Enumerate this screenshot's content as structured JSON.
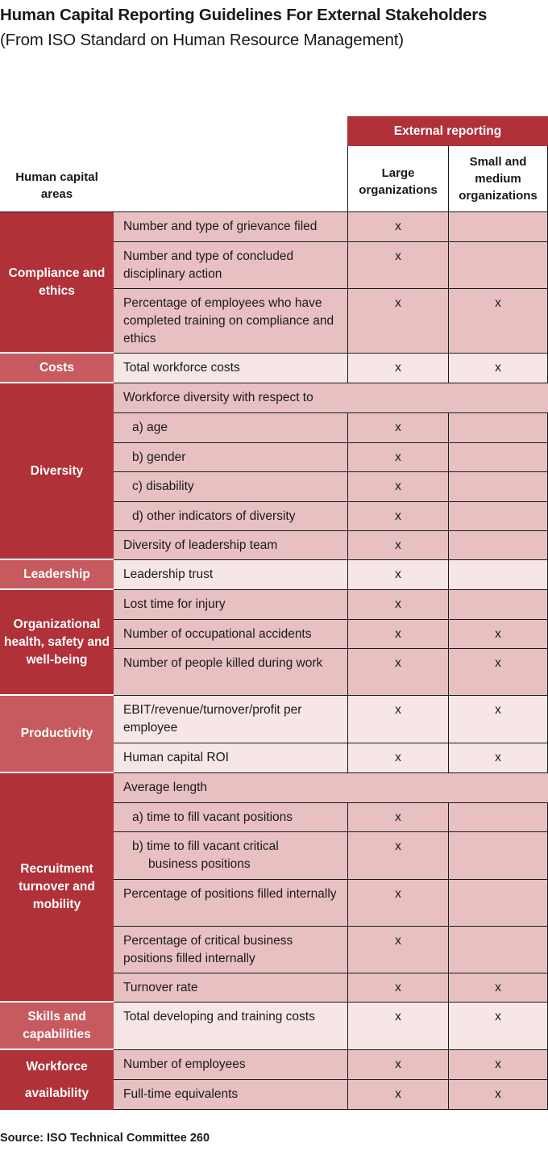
{
  "title": "Human Capital Reporting Guidelines For External Stakeholders",
  "subtitle": "(From ISO Standard on Human Resource Management)",
  "header": {
    "areas": "Human capital areas",
    "external": "External reporting",
    "large": "Large organizations",
    "small": "Small and medium organizations"
  },
  "areas": {
    "compliance": "Compliance and ethics",
    "costs": "Costs",
    "diversity": "Diversity",
    "leadership": "Leadership",
    "health": "Organizational health, safety and well-being",
    "productivity": "Productivity",
    "recruitment": "Recruitment turnover and mobility",
    "skills": "Skills and capabilities",
    "workforce_1": "Workforce",
    "workforce_2": "availability"
  },
  "rows": [
    {
      "item": "Number and type of grievance filed",
      "large": "x",
      "small": ""
    },
    {
      "item": "Number and type of concluded disciplinary action",
      "large": "x",
      "small": ""
    },
    {
      "item": "Percentage of employees who have completed training on compliance and ethics",
      "large": "x",
      "small": "x"
    },
    {
      "item": "Total workforce costs",
      "large": "x",
      "small": "x"
    },
    {
      "item": "Workforce diversity with respect to",
      "large": "",
      "small": ""
    },
    {
      "item": "a) age",
      "large": "x",
      "small": ""
    },
    {
      "item": "b) gender",
      "large": "x",
      "small": ""
    },
    {
      "item": "c) disability",
      "large": "x",
      "small": ""
    },
    {
      "item": "d) other indicators of diversity",
      "large": "x",
      "small": ""
    },
    {
      "item": "Diversity of leadership team",
      "large": "x",
      "small": ""
    },
    {
      "item": "Leadership trust",
      "large": "x",
      "small": ""
    },
    {
      "item": "Lost time for injury",
      "large": "x",
      "small": ""
    },
    {
      "item": "Number of occupational accidents",
      "large": "x",
      "small": "x"
    },
    {
      "item": "Number of people killed during work",
      "large": "x",
      "small": "x"
    },
    {
      "item": "EBIT/revenue/turnover/profit per employee",
      "large": "x",
      "small": "x"
    },
    {
      "item": "Human capital ROI",
      "large": "x",
      "small": "x"
    },
    {
      "item": "Average length",
      "large": "",
      "small": ""
    },
    {
      "item": "a) time to fill vacant positions",
      "large": "x",
      "small": ""
    },
    {
      "item": "b) time to fill vacant critical",
      "item_cont": "business positions",
      "large": "x",
      "small": ""
    },
    {
      "item": "Percentage of positions filled internally",
      "large": "x",
      "small": ""
    },
    {
      "item": "Percentage of critical business positions filled internally",
      "large": "x",
      "small": ""
    },
    {
      "item": "Turnover rate",
      "large": "x",
      "small": "x"
    },
    {
      "item": "Total developing and training costs",
      "large": "x",
      "small": "x"
    },
    {
      "item": "Number of employees",
      "large": "x",
      "small": "x"
    },
    {
      "item": "Full-time equivalents",
      "large": "x",
      "small": "x"
    }
  ],
  "source": "Source: ISO Technical Committee 260",
  "colors": {
    "area_dark": "#b03138",
    "area_light": "#c75a5e",
    "row_dark": "#e8c0c2",
    "row_light": "#f6e6e6"
  }
}
